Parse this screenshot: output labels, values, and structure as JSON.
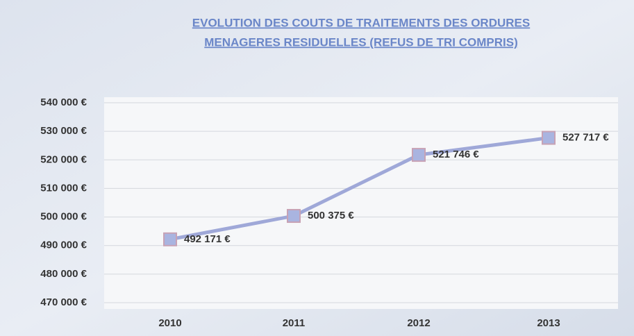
{
  "chart_data": {
    "type": "line",
    "title": [
      "EVOLUTION DES COUTS DE TRAITEMENTS DES ORDURES",
      "MENAGERES RESIDUELLES  (REFUS DE TRI COMPRIS)"
    ],
    "categories": [
      "2010",
      "2011",
      "2012",
      "2013"
    ],
    "values": [
      492171,
      500375,
      521746,
      527717
    ],
    "value_labels": [
      "492 171 €",
      "500 375 €",
      "521 746 €",
      "527 717 €"
    ],
    "color": "#9fa8d8",
    "ylim": [
      470000,
      540000
    ],
    "yticks": [
      {
        "value": 470000,
        "label": "470 000 €"
      },
      {
        "value": 480000,
        "label": "480 000 €"
      },
      {
        "value": 490000,
        "label": "490 000 €"
      },
      {
        "value": 500000,
        "label": "500 000 €"
      },
      {
        "value": 510000,
        "label": "510 000 €"
      },
      {
        "value": 520000,
        "label": "520 000 €"
      },
      {
        "value": 530000,
        "label": "530 000 €"
      },
      {
        "value": 540000,
        "label": "540 000 €"
      }
    ],
    "grid": true
  }
}
